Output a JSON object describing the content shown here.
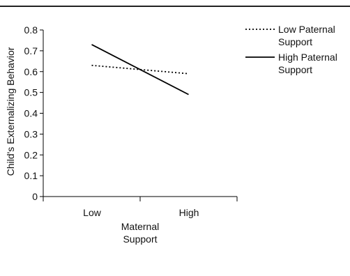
{
  "chart_data": {
    "type": "line",
    "categories": [
      "Low",
      "High"
    ],
    "series": [
      {
        "name": "Low Paternal Support",
        "values": [
          0.63,
          0.59
        ],
        "line_style": "dotted",
        "color": "#000000"
      },
      {
        "name": "High Paternal Support",
        "values": [
          0.73,
          0.49
        ],
        "line_style": "solid",
        "color": "#000000"
      }
    ],
    "title": "",
    "xlabel": "Maternal Support",
    "ylabel": "Child's Externalizing Behavior",
    "ylim": [
      0,
      0.8
    ],
    "yticks": [
      "0",
      "0.1",
      "0.2",
      "0.3",
      "0.4",
      "0.5",
      "0.6",
      "0.7",
      "0.8"
    ],
    "grid": false,
    "legend_position": "top-right",
    "legend": {
      "low_line1": "Low Paternal",
      "low_line2": "Support",
      "high_line1": "High Paternal",
      "high_line2": "Support"
    },
    "xlabel_line1": "Maternal",
    "xlabel_line2": "Support"
  }
}
